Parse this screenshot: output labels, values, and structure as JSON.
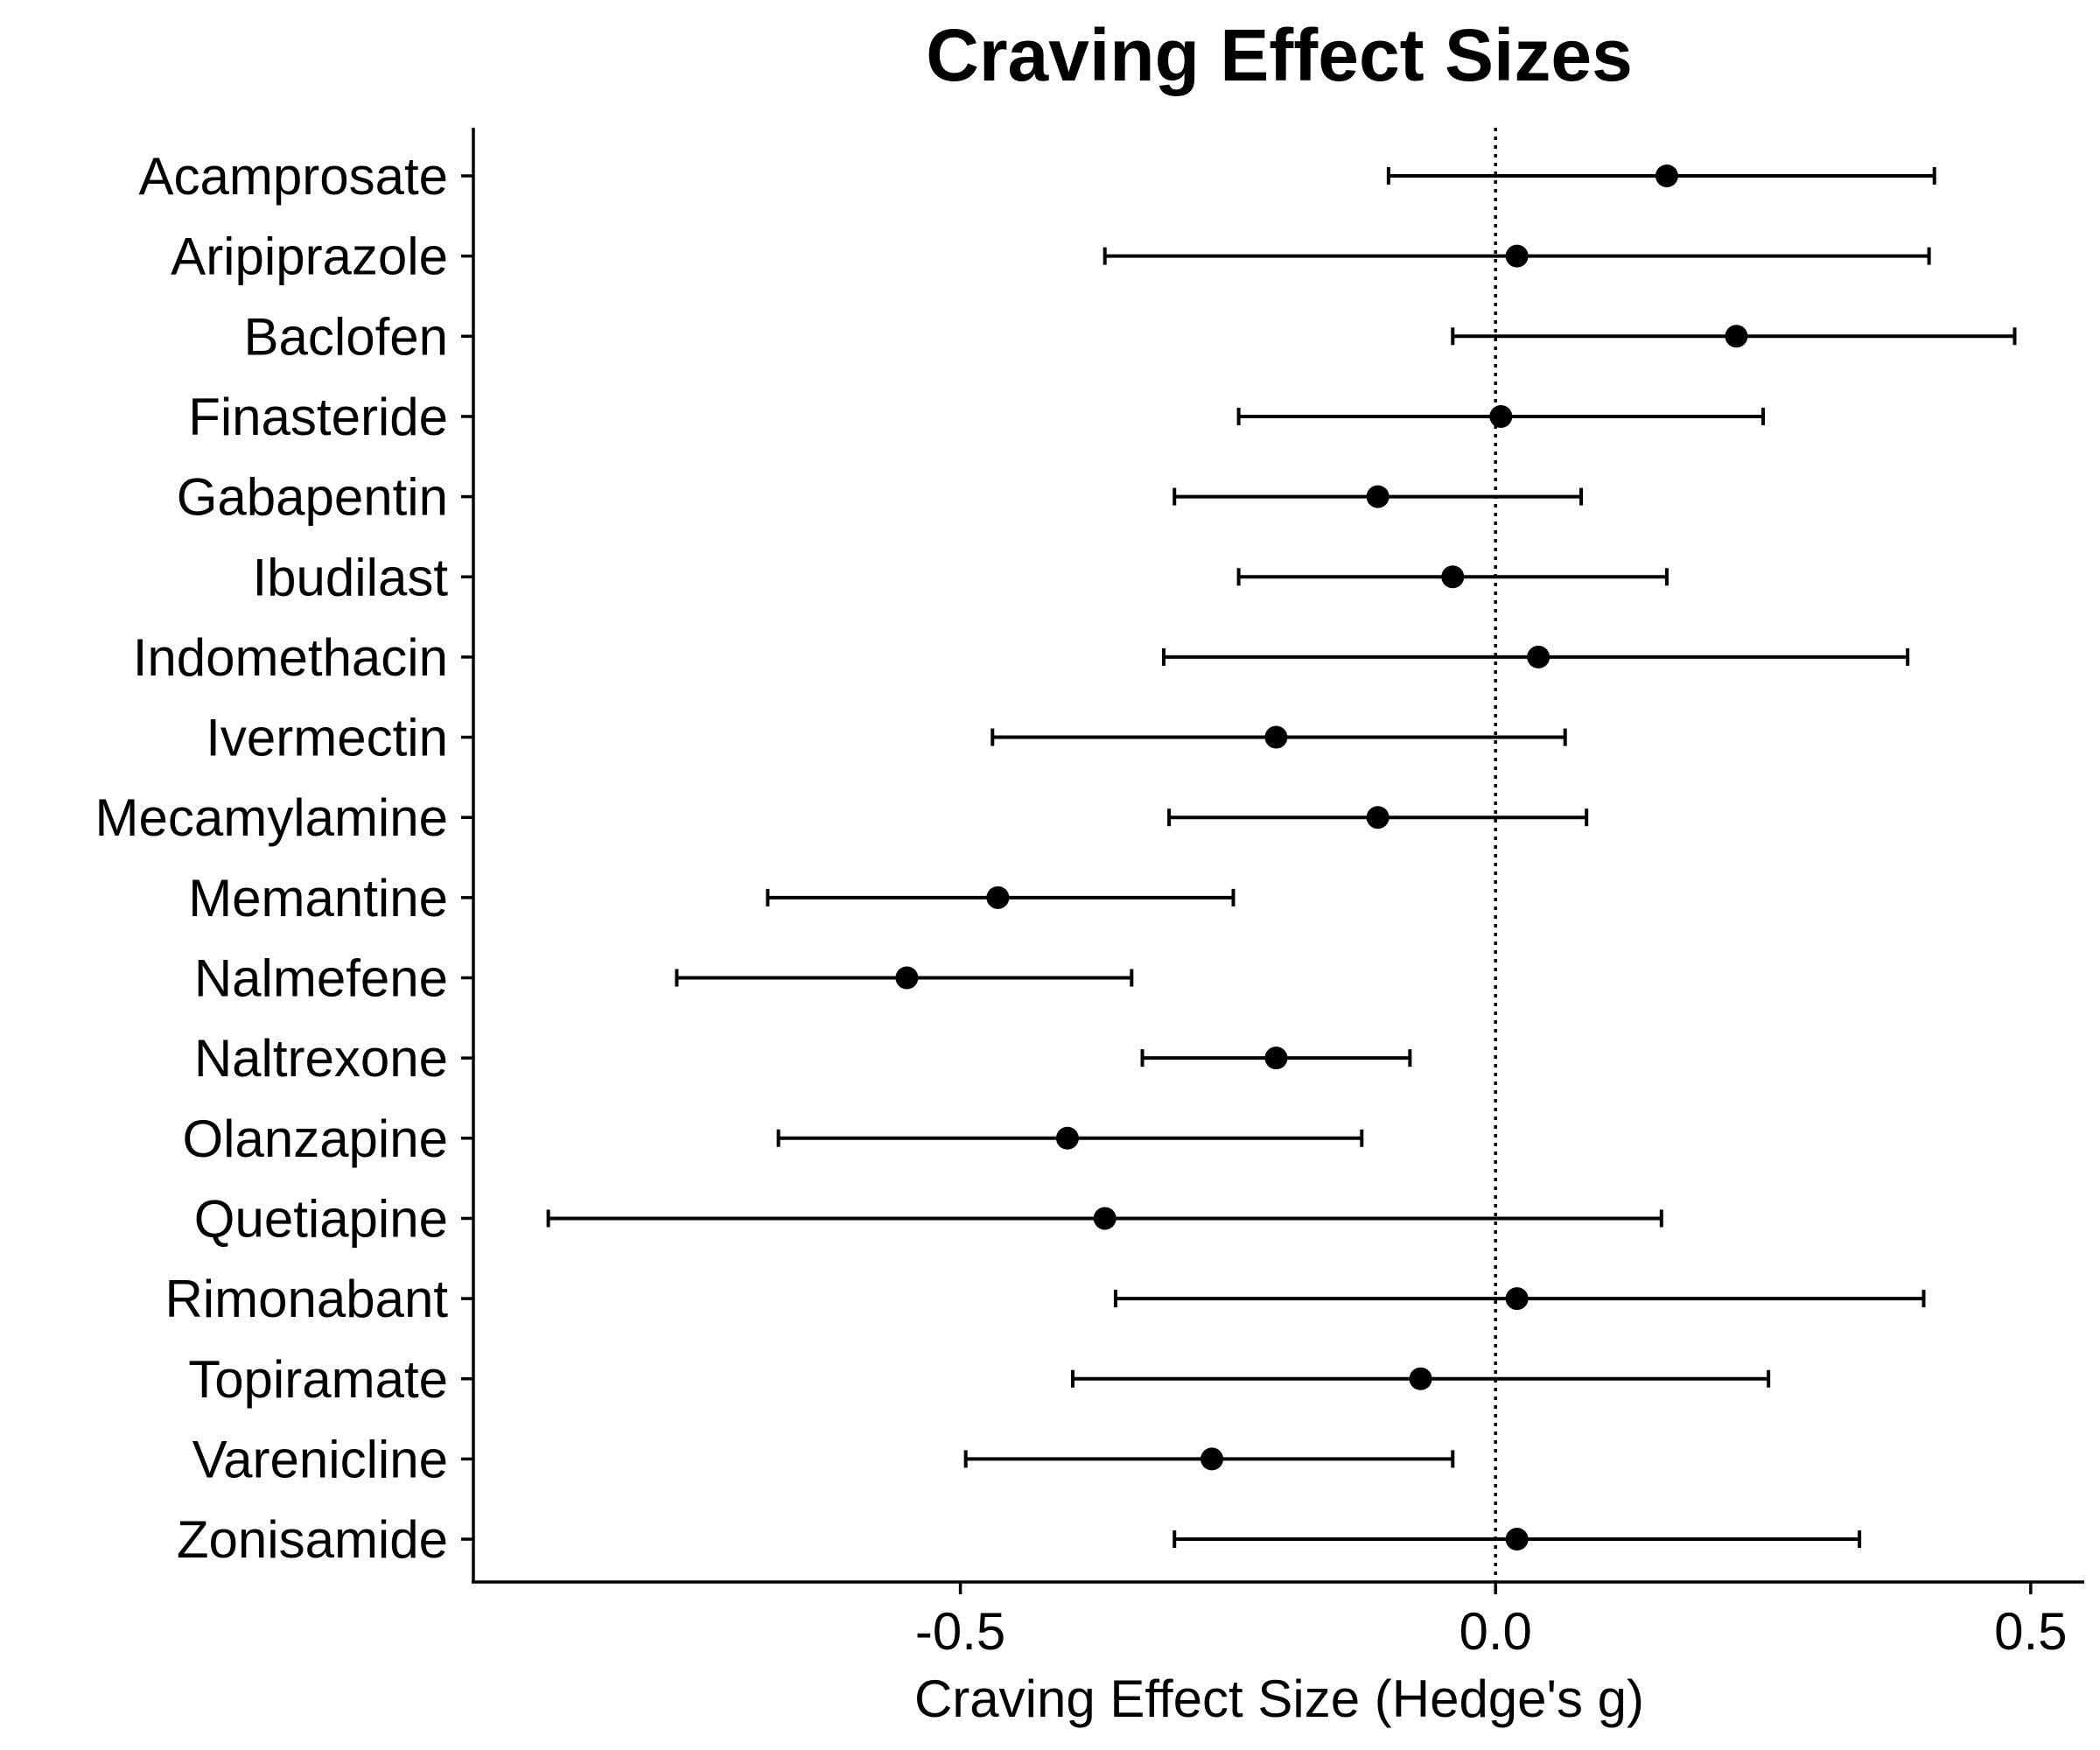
{
  "chart_data": {
    "type": "forest",
    "title": "Craving Effect Sizes",
    "xlabel": "Craving Effect Size (Hedge's g)",
    "ylabel": "",
    "xlim": [
      -0.955,
      0.55
    ],
    "xticks": [
      -0.5,
      0.0,
      0.5
    ],
    "xtick_labels": [
      "-0.5",
      "0.0",
      "0.5"
    ],
    "reference_line": {
      "x": 0.0,
      "style": "dotted"
    },
    "grid": false,
    "categories": [
      "Acamprosate",
      "Aripiprazole",
      "Baclofen",
      "Finasteride",
      "Gabapentin",
      "Ibudilast",
      "Indomethacin",
      "Ivermectin",
      "Mecamylamine",
      "Memantine",
      "Nalmefene",
      "Naltrexone",
      "Olanzapine",
      "Quetiapine",
      "Rimonabant",
      "Topiramate",
      "Varenicline",
      "Zonisamide"
    ],
    "series": [
      {
        "estimate": [
          0.16,
          0.02,
          0.225,
          0.005,
          -0.11,
          -0.04,
          0.04,
          -0.205,
          -0.11,
          -0.465,
          -0.55,
          -0.205,
          -0.4,
          -0.365,
          0.02,
          -0.07,
          -0.265,
          0.02
        ],
        "lower": [
          -0.1,
          -0.365,
          -0.04,
          -0.24,
          -0.3,
          -0.24,
          -0.31,
          -0.47,
          -0.305,
          -0.68,
          -0.765,
          -0.33,
          -0.67,
          -0.885,
          -0.355,
          -0.395,
          -0.495,
          -0.3
        ],
        "upper": [
          0.41,
          0.405,
          0.485,
          0.25,
          0.08,
          0.16,
          0.385,
          0.065,
          0.085,
          -0.245,
          -0.34,
          -0.08,
          -0.125,
          0.155,
          0.4,
          0.255,
          -0.04,
          0.34
        ]
      }
    ]
  }
}
